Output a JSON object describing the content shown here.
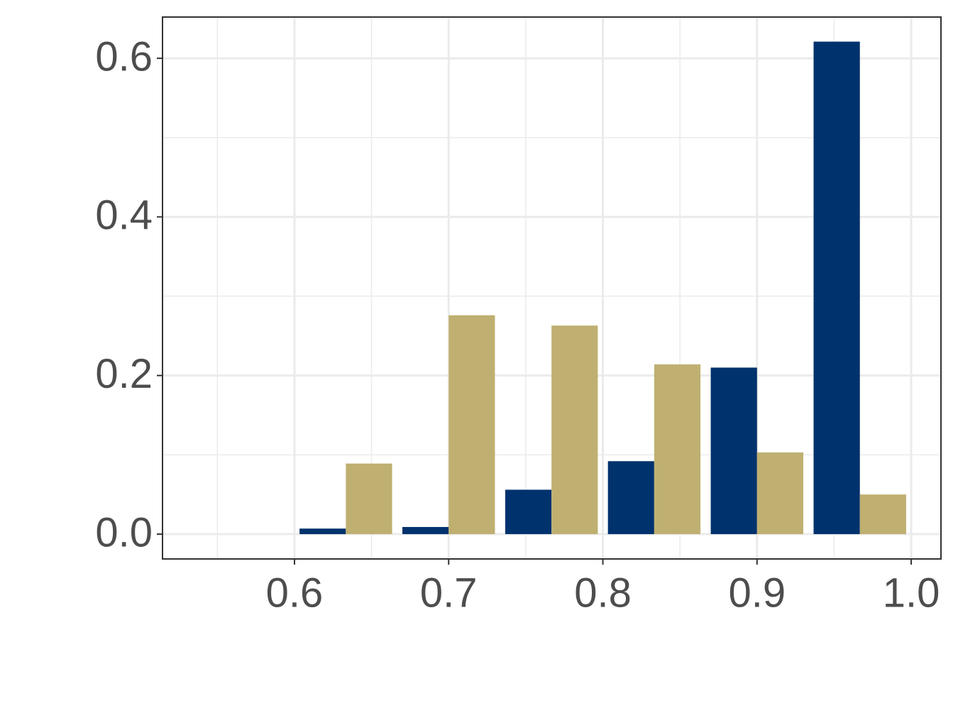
{
  "chart_data": {
    "type": "bar",
    "x": [
      0.6333,
      0.7,
      0.7667,
      0.8333,
      0.9,
      0.9667
    ],
    "series": [
      {
        "color": "#00326d",
        "values": [
          0.007,
          0.009,
          0.056,
          0.092,
          0.21,
          0.621
        ]
      },
      {
        "color": "#bfb071",
        "values": [
          0.089,
          0.276,
          0.263,
          0.214,
          0.103,
          0.05
        ]
      }
    ],
    "xlim": [
      0.5144,
      1.0193
    ],
    "ylim": [
      -0.0313,
      0.652
    ],
    "xticks": [
      0.6,
      0.7,
      0.8,
      0.9,
      {
        "value": 1,
        "label": "1.0"
      }
    ],
    "yticks": [
      {
        "value": 0,
        "label": "0.0"
      },
      0.2,
      0.4,
      0.6
    ],
    "grid": true
  }
}
